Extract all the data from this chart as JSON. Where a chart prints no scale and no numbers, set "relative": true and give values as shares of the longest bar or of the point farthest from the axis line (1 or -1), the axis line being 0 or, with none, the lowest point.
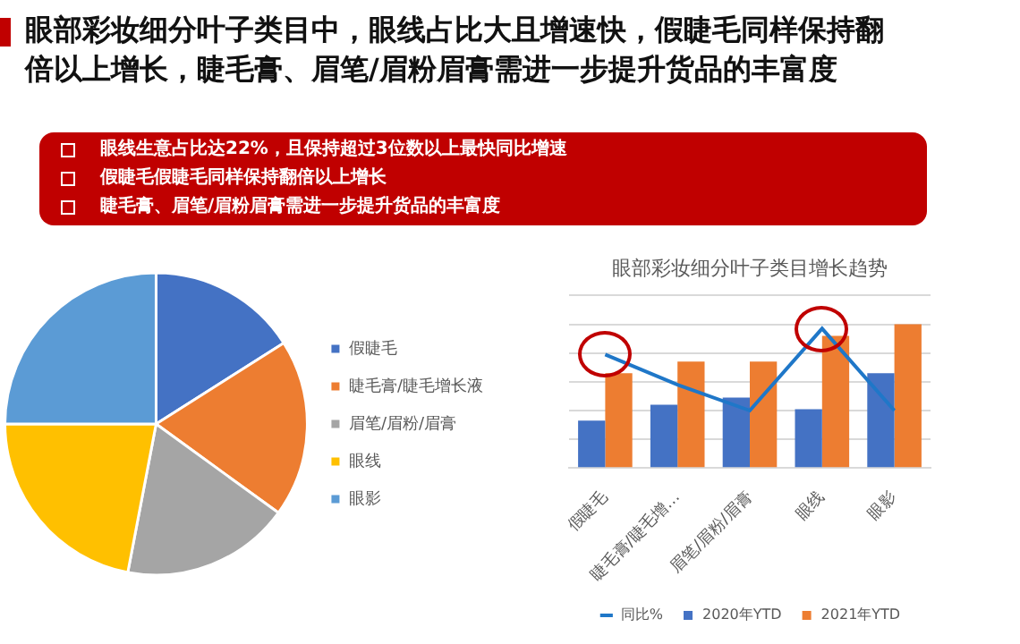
{
  "chart_data": [
    {
      "type": "other",
      "title": "眼部彩妆细分叶子类目中，眼线占比大且增速快，假睫毛同样保持翻倍以上增长，睫毛膏、眉笔/眉粉眉膏需进一步提升货品的丰富度",
      "annotations": [
        "眼线生意占比达22%，且保持超过3位数以上最快同比增速",
        "假睫毛假睫毛同样保持翻倍以上增长",
        "睫毛膏、眉笔/眉粉眉膏需进一步提升货品的丰富度"
      ]
    },
    {
      "type": "pie",
      "categories": [
        "假睫毛",
        "睫毛膏/睫毛增长液",
        "眉笔/眉粉/眉膏",
        "眼线",
        "眼影"
      ],
      "values": [
        16,
        19,
        18,
        22,
        25
      ],
      "colors": [
        "#4472c4",
        "#ed7d31",
        "#a5a5a5",
        "#ffc000",
        "#5b9bd5"
      ],
      "legend": "right"
    },
    {
      "type": "bar",
      "title": "眼部彩妆细分叶子类目增长趋势",
      "relative": true,
      "grid": "y",
      "legend": "bottom",
      "categories": [
        "假睫毛",
        "睫毛膏/睫毛增…",
        "眉笔/眉粉/眉膏",
        "眼线",
        "眼影"
      ],
      "series": [
        {
          "name": "2020年YTD",
          "color": "#4472c4",
          "values": [
            0.33,
            0.44,
            0.49,
            0.41,
            0.66
          ]
        },
        {
          "name": "2021年YTD",
          "color": "#ed7d31",
          "values": [
            0.66,
            0.74,
            0.74,
            0.92,
            1
          ]
        },
        {
          "name": "同比%",
          "type": "line",
          "color": "#1f77c8",
          "values": [
            0.79,
            0.58,
            0.4,
            0.97,
            0.4
          ]
        }
      ]
    }
  ]
}
